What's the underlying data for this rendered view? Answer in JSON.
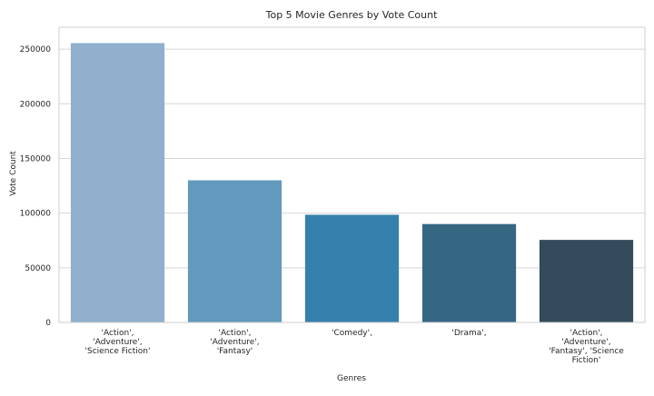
{
  "chart_data": {
    "type": "bar",
    "title": "Top 5 Movie Genres by Vote Count",
    "xlabel": "Genres",
    "ylabel": "Vote Count",
    "categories": [
      [
        "'Action',",
        "'Adventure',",
        "'Science Fiction'"
      ],
      [
        "'Action',",
        "'Adventure',",
        "'Fantasy'"
      ],
      [
        "'Comedy',"
      ],
      [
        "'Drama',"
      ],
      [
        "'Action',",
        "'Adventure',",
        "'Fantasy', 'Science",
        "Fiction'"
      ]
    ],
    "values": [
      255500,
      130000,
      98500,
      90000,
      75500
    ],
    "colors": [
      "#90b0cd",
      "#6299bc",
      "#3680ad",
      "#356783",
      "#344b5b"
    ],
    "ylim": [
      0,
      270000
    ],
    "yticks": [
      0,
      50000,
      100000,
      150000,
      200000,
      250000
    ],
    "grid": true,
    "grid_axis": "y",
    "legend": "none"
  }
}
